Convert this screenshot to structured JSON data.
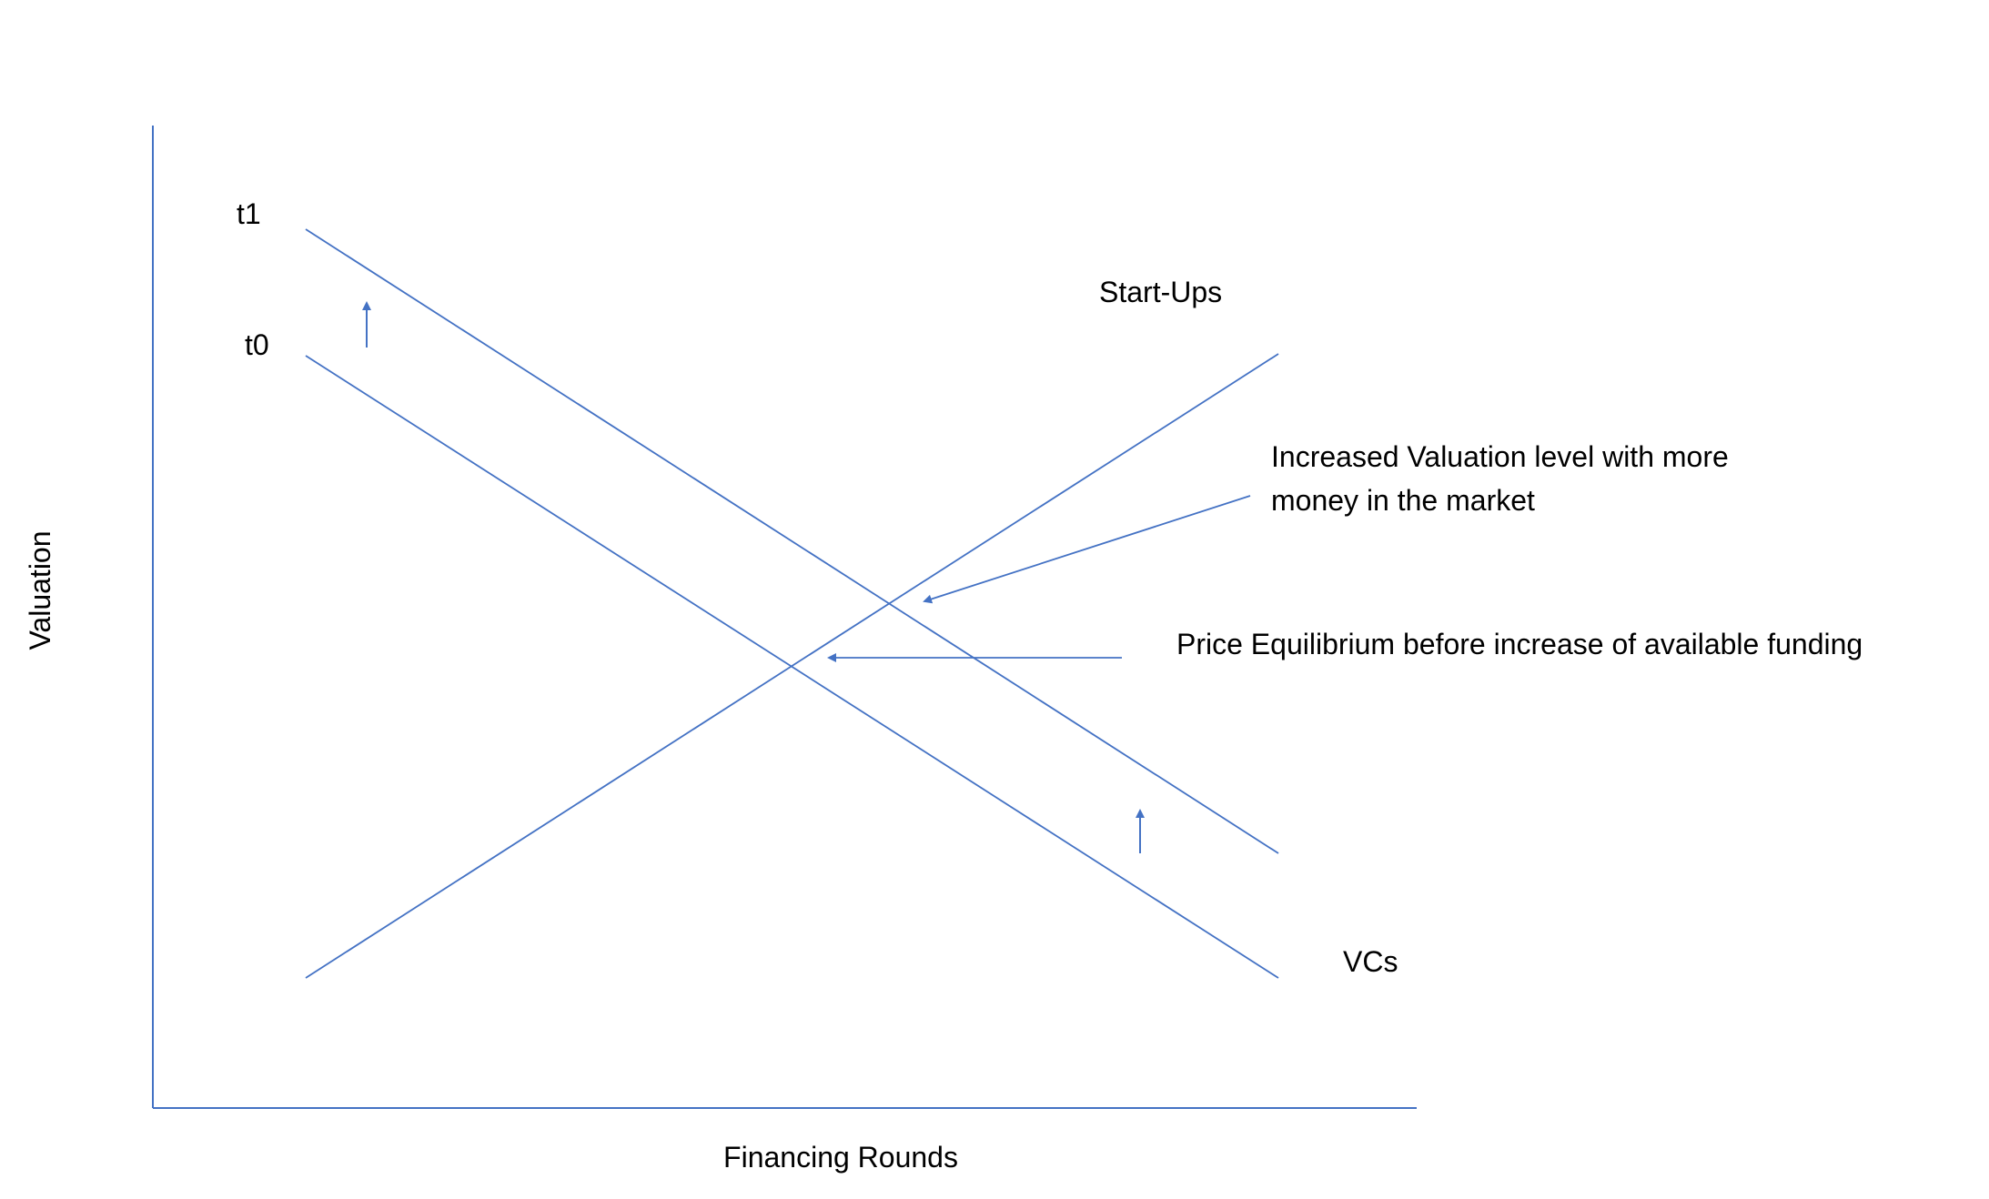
{
  "diagram": {
    "y_axis_label": "Valuation",
    "x_axis_label": "Financing Rounds",
    "curve_labels": {
      "t1": "t1",
      "t0": "t0",
      "startups": "Start-Ups",
      "vcs": "VCs"
    },
    "annotations": {
      "increased_line1": "Increased Valuation level with more",
      "increased_line2": "money in the market",
      "equilibrium": "Price Equilibrium before increase of available funding"
    },
    "line_color": "#4472C4",
    "text_color": "#000000"
  }
}
